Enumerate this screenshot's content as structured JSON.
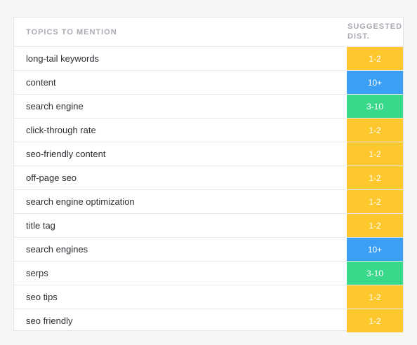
{
  "table": {
    "header": {
      "topic": "TOPICS TO MENTION",
      "dist": "SUGGESTED\nDIST."
    },
    "rows": [
      {
        "topic": "long-tail keywords",
        "dist": "1-2",
        "color": "yellow"
      },
      {
        "topic": "content",
        "dist": "10+",
        "color": "blue"
      },
      {
        "topic": "search engine",
        "dist": "3-10",
        "color": "green"
      },
      {
        "topic": "click-through rate",
        "dist": "1-2",
        "color": "yellow"
      },
      {
        "topic": "seo-friendly content",
        "dist": "1-2",
        "color": "yellow"
      },
      {
        "topic": "off-page seo",
        "dist": "1-2",
        "color": "yellow"
      },
      {
        "topic": "search engine optimization",
        "dist": "1-2",
        "color": "yellow"
      },
      {
        "topic": "title tag",
        "dist": "1-2",
        "color": "yellow"
      },
      {
        "topic": "search engines",
        "dist": "10+",
        "color": "blue"
      },
      {
        "topic": "serps",
        "dist": "3-10",
        "color": "green"
      },
      {
        "topic": "seo tips",
        "dist": "1-2",
        "color": "yellow"
      },
      {
        "topic": "seo friendly",
        "dist": "1-2",
        "color": "yellow"
      }
    ]
  },
  "colors": {
    "yellow": "#fdc72d",
    "blue": "#3b9ff5",
    "green": "#38d98a"
  }
}
